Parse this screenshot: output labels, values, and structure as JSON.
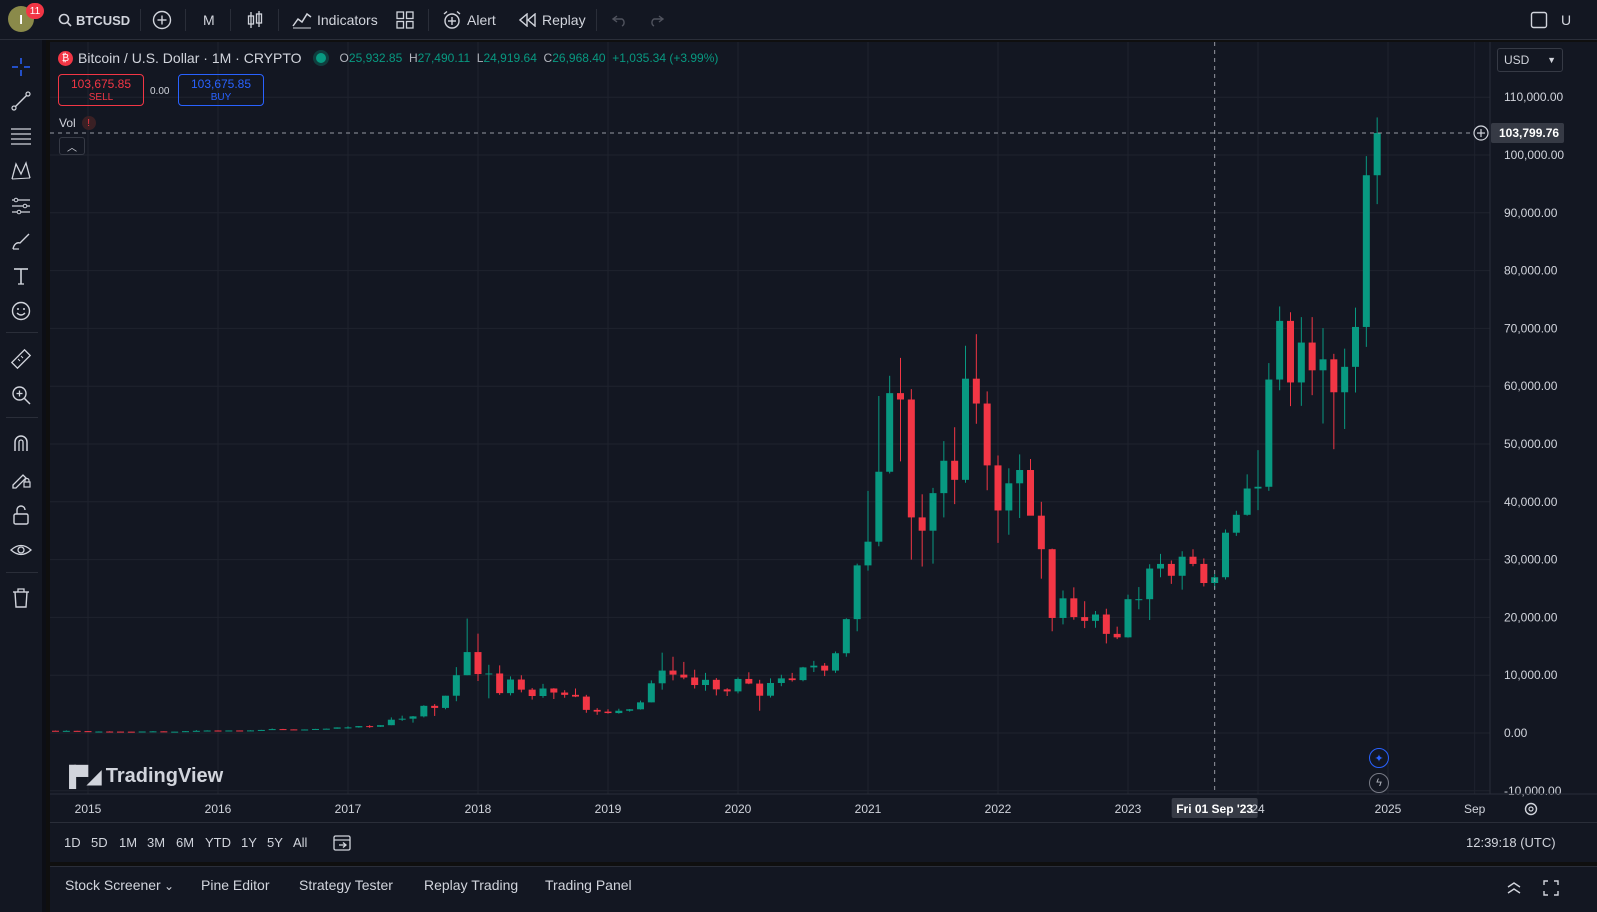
{
  "topbar": {
    "avatar_letter": "I",
    "notification_count": "11",
    "symbol": "BTCUSD",
    "interval": "M",
    "indicators_label": "Indicators",
    "alert_label": "Alert",
    "replay_label": "Replay",
    "right_cut_text": "U"
  },
  "legend": {
    "title": "Bitcoin / U.S. Dollar · 1M · CRYPTO",
    "open_key": "O",
    "open": "25,932.85",
    "high_key": "H",
    "high": "27,490.11",
    "low_key": "L",
    "low": "24,919.64",
    "close_key": "C",
    "close": "26,968.40",
    "change": "+1,035.34 (+3.99%)"
  },
  "trade": {
    "sell_price": "103,675.85",
    "sell_label": "SELL",
    "spread": "0.00",
    "buy_price": "103,675.85",
    "buy_label": "BUY"
  },
  "volume_label": "Vol",
  "currency": "USD",
  "watermark": "TradingView",
  "price_axis": {
    "crosshair_price": "103,799.76",
    "ticks": [
      "110,000.00",
      "100,000.00",
      "90,000.00",
      "80,000.00",
      "70,000.00",
      "60,000.00",
      "50,000.00",
      "40,000.00",
      "30,000.00",
      "20,000.00",
      "10,000.00",
      "0.00",
      "-10,000.00"
    ]
  },
  "time_axis": {
    "crosshair_label": "Fri 01 Sep '23",
    "ticks": [
      "2015",
      "2016",
      "2017",
      "2018",
      "2019",
      "2020",
      "2021",
      "2022",
      "2023",
      "24",
      "2025",
      "Sep"
    ]
  },
  "colors": {
    "up": "#089981",
    "down": "#f23645",
    "background": "#131722",
    "grid": "#1f232e"
  },
  "chart_data": {
    "type": "candlestick",
    "interval": "1M",
    "ylim": [
      -10000,
      110000
    ],
    "xlim": [
      "2014-09",
      "2025-09"
    ],
    "candles": [
      [
        "2014-09",
        450,
        480,
        360,
        390
      ],
      [
        "2014-10",
        390,
        410,
        280,
        330
      ],
      [
        "2014-11",
        330,
        450,
        310,
        375
      ],
      [
        "2014-12",
        375,
        380,
        300,
        320
      ],
      [
        "2015-01",
        320,
        320,
        165,
        220
      ],
      [
        "2015-02",
        220,
        280,
        210,
        255
      ],
      [
        "2015-03",
        255,
        300,
        240,
        245
      ],
      [
        "2015-04",
        245,
        260,
        215,
        235
      ],
      [
        "2015-05",
        235,
        245,
        225,
        230
      ],
      [
        "2015-06",
        230,
        265,
        220,
        262
      ],
      [
        "2015-07",
        262,
        315,
        255,
        285
      ],
      [
        "2015-08",
        285,
        290,
        200,
        230
      ],
      [
        "2015-09",
        230,
        245,
        225,
        236
      ],
      [
        "2015-10",
        236,
        330,
        235,
        315
      ],
      [
        "2015-11",
        315,
        500,
        300,
        378
      ],
      [
        "2015-12",
        378,
        470,
        350,
        430
      ],
      [
        "2016-01",
        430,
        460,
        360,
        368
      ],
      [
        "2016-02",
        368,
        445,
        365,
        436
      ],
      [
        "2016-03",
        436,
        440,
        400,
        416
      ],
      [
        "2016-04",
        416,
        470,
        410,
        448
      ],
      [
        "2016-05",
        448,
        550,
        440,
        530
      ],
      [
        "2016-06",
        530,
        780,
        530,
        675
      ],
      [
        "2016-07",
        675,
        705,
        610,
        624
      ],
      [
        "2016-08",
        624,
        630,
        530,
        575
      ],
      [
        "2016-09",
        575,
        620,
        570,
        609
      ],
      [
        "2016-10",
        609,
        720,
        605,
        700
      ],
      [
        "2016-11",
        700,
        760,
        690,
        745
      ],
      [
        "2016-12",
        745,
        980,
        740,
        965
      ],
      [
        "2017-01",
        965,
        1150,
        750,
        970
      ],
      [
        "2017-02",
        970,
        1200,
        920,
        1190
      ],
      [
        "2017-03",
        1190,
        1350,
        900,
        1080
      ],
      [
        "2017-04",
        1080,
        1350,
        1070,
        1350
      ],
      [
        "2017-05",
        1350,
        2700,
        1350,
        2300
      ],
      [
        "2017-06",
        2300,
        3000,
        2100,
        2480
      ],
      [
        "2017-07",
        2480,
        2950,
        1800,
        2875
      ],
      [
        "2017-08",
        2875,
        4800,
        2700,
        4700
      ],
      [
        "2017-09",
        4700,
        5000,
        2950,
        4340
      ],
      [
        "2017-10",
        4340,
        6450,
        4100,
        6450
      ],
      [
        "2017-11",
        6450,
        11400,
        5500,
        10000
      ],
      [
        "2017-12",
        10000,
        19800,
        10000,
        14000
      ],
      [
        "2018-01",
        14000,
        17200,
        9000,
        10200
      ],
      [
        "2018-02",
        10200,
        11800,
        6000,
        10300
      ],
      [
        "2018-03",
        10300,
        11700,
        6600,
        6900
      ],
      [
        "2018-04",
        6900,
        9800,
        6500,
        9250
      ],
      [
        "2018-05",
        9250,
        9990,
        7030,
        7500
      ],
      [
        "2018-06",
        7500,
        7780,
        5780,
        6400
      ],
      [
        "2018-07",
        6400,
        8500,
        6100,
        7700
      ],
      [
        "2018-08",
        7700,
        7760,
        5880,
        7000
      ],
      [
        "2018-09",
        7000,
        7400,
        6100,
        6600
      ],
      [
        "2018-10",
        6600,
        7700,
        6200,
        6300
      ],
      [
        "2018-11",
        6300,
        6600,
        3500,
        4000
      ],
      [
        "2018-12",
        4000,
        4300,
        3150,
        3700
      ],
      [
        "2019-01",
        3700,
        4100,
        3350,
        3450
      ],
      [
        "2019-02",
        3450,
        4200,
        3350,
        3850
      ],
      [
        "2019-03",
        3850,
        4150,
        3700,
        4100
      ],
      [
        "2019-04",
        4100,
        5600,
        4050,
        5300
      ],
      [
        "2019-05",
        5300,
        9100,
        5300,
        8600
      ],
      [
        "2019-06",
        8600,
        13900,
        7500,
        10800
      ],
      [
        "2019-07",
        10800,
        13200,
        9100,
        10100
      ],
      [
        "2019-08",
        10100,
        12300,
        9300,
        9600
      ],
      [
        "2019-09",
        9600,
        10950,
        7700,
        8300
      ],
      [
        "2019-10",
        8300,
        10400,
        7300,
        9200
      ],
      [
        "2019-11",
        9200,
        9500,
        6500,
        7550
      ],
      [
        "2019-12",
        7550,
        7750,
        6400,
        7200
      ],
      [
        "2020-01",
        7200,
        9600,
        6850,
        9350
      ],
      [
        "2020-02",
        9350,
        10500,
        8450,
        8550
      ],
      [
        "2020-03",
        8550,
        9200,
        3850,
        6450
      ],
      [
        "2020-04",
        6450,
        9460,
        6150,
        8650
      ],
      [
        "2020-05",
        8650,
        10080,
        8100,
        9450
      ],
      [
        "2020-06",
        9450,
        10400,
        8900,
        9150
      ],
      [
        "2020-07",
        9150,
        11450,
        8950,
        11350
      ],
      [
        "2020-08",
        11350,
        12480,
        10550,
        11650
      ],
      [
        "2020-09",
        11650,
        12100,
        9850,
        10800
      ],
      [
        "2020-10",
        10800,
        14100,
        10400,
        13800
      ],
      [
        "2020-11",
        13800,
        19850,
        13200,
        19700
      ],
      [
        "2020-12",
        19700,
        29300,
        17600,
        29000
      ],
      [
        "2021-01",
        29000,
        41900,
        28100,
        33100
      ],
      [
        "2021-02",
        33100,
        58300,
        32300,
        45200
      ],
      [
        "2021-03",
        45200,
        61800,
        44900,
        58800
      ],
      [
        "2021-04",
        58800,
        64900,
        47000,
        57700
      ],
      [
        "2021-05",
        57700,
        59500,
        30000,
        37300
      ],
      [
        "2021-06",
        37300,
        41300,
        28800,
        35000
      ],
      [
        "2021-07",
        35000,
        42400,
        29300,
        41500
      ],
      [
        "2021-08",
        41500,
        50500,
        37300,
        47100
      ],
      [
        "2021-09",
        47100,
        52900,
        39600,
        43800
      ],
      [
        "2021-10",
        43800,
        67000,
        43300,
        61300
      ],
      [
        "2021-11",
        61300,
        69000,
        53500,
        57000
      ],
      [
        "2021-12",
        57000,
        59100,
        42000,
        46300
      ],
      [
        "2022-01",
        46300,
        48000,
        32900,
        38500
      ],
      [
        "2022-02",
        38500,
        45800,
        34300,
        43200
      ],
      [
        "2022-03",
        43200,
        48200,
        37200,
        45500
      ],
      [
        "2022-04",
        45500,
        47400,
        37700,
        37600
      ],
      [
        "2022-05",
        37600,
        40000,
        26700,
        31800
      ],
      [
        "2022-06",
        31800,
        31900,
        17600,
        19900
      ],
      [
        "2022-07",
        19900,
        24650,
        18800,
        23300
      ],
      [
        "2022-08",
        23300,
        25200,
        19600,
        20050
      ],
      [
        "2022-09",
        20050,
        22800,
        18150,
        19400
      ],
      [
        "2022-10",
        19400,
        21100,
        18200,
        20500
      ],
      [
        "2022-11",
        20500,
        21500,
        15500,
        17150
      ],
      [
        "2022-12",
        17150,
        18400,
        16250,
        16550
      ],
      [
        "2023-01",
        16550,
        23950,
        16500,
        23150
      ],
      [
        "2023-02",
        23150,
        25250,
        21400,
        23150
      ],
      [
        "2023-03",
        23150,
        29200,
        19550,
        28450
      ],
      [
        "2023-04",
        28450,
        31000,
        26950,
        29250
      ],
      [
        "2023-05",
        29250,
        29850,
        25800,
        27200
      ],
      [
        "2023-06",
        27200,
        31450,
        24800,
        30500
      ],
      [
        "2023-07",
        30500,
        31800,
        28850,
        29250
      ],
      [
        "2023-08",
        29250,
        30200,
        25350,
        25950
      ],
      [
        "2023-09",
        25950,
        27500,
        24900,
        26950
      ],
      [
        "2023-10",
        26950,
        35200,
        26550,
        34650
      ],
      [
        "2023-11",
        34650,
        38450,
        34100,
        37750
      ],
      [
        "2023-12",
        37750,
        44750,
        37600,
        42300
      ],
      [
        "2024-01",
        42300,
        48950,
        38550,
        42600
      ],
      [
        "2024-02",
        42600,
        64000,
        41900,
        61150
      ],
      [
        "2024-03",
        61150,
        73800,
        59300,
        71300
      ],
      [
        "2024-04",
        71300,
        72800,
        56550,
        60650
      ],
      [
        "2024-05",
        60650,
        71950,
        56600,
        67550
      ],
      [
        "2024-06",
        67550,
        71950,
        58450,
        62750
      ],
      [
        "2024-07",
        62750,
        70050,
        53550,
        64650
      ],
      [
        "2024-08",
        64650,
        65600,
        49100,
        58950
      ],
      [
        "2024-09",
        58950,
        66500,
        52600,
        63350
      ],
      [
        "2024-10",
        63350,
        73600,
        58900,
        70250
      ],
      [
        "2024-11",
        70250,
        99800,
        66800,
        96500
      ],
      [
        "2024-12",
        96500,
        106500,
        91500,
        103800
      ]
    ]
  },
  "range_buttons": [
    "1D",
    "5D",
    "1M",
    "3M",
    "6M",
    "YTD",
    "1Y",
    "5Y",
    "All"
  ],
  "clock": "12:39:18 (UTC)",
  "bottom_tabs": [
    "Stock Screener",
    "Pine Editor",
    "Strategy Tester",
    "Replay Trading",
    "Trading Panel"
  ]
}
